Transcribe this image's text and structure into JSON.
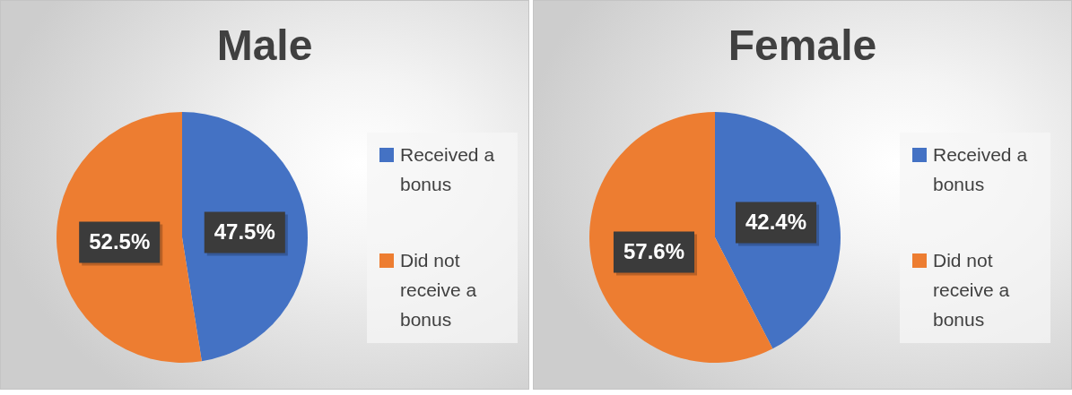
{
  "chart_data": [
    {
      "type": "pie",
      "title": "Male",
      "categories": [
        "Received a bonus",
        "Did not receive a bonus"
      ],
      "values": [
        47.5,
        52.5
      ],
      "colors": [
        "#4472c4",
        "#ed7d31"
      ],
      "value_labels": [
        "47.5%",
        "52.5%"
      ],
      "legend": "right"
    },
    {
      "type": "pie",
      "title": "Female",
      "categories": [
        "Received a bonus",
        "Did not receive a bonus"
      ],
      "values": [
        42.4,
        57.6
      ],
      "colors": [
        "#4472c4",
        "#ed7d31"
      ],
      "value_labels": [
        "42.4%",
        "57.6%"
      ],
      "legend": "right"
    }
  ]
}
